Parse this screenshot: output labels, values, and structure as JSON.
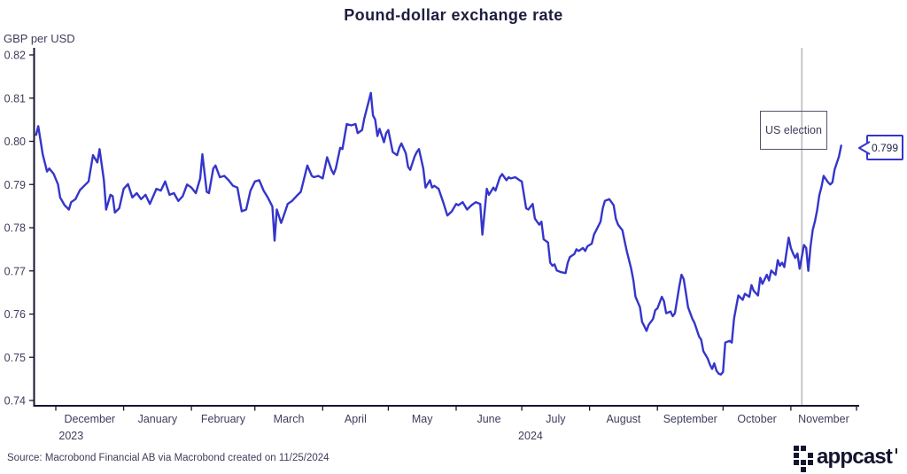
{
  "title": "Pound-dollar exchange rate",
  "y_axis_title": "GBP per USD",
  "source": "Source: Macrobond Financial AB via Macrobond created on 11/25/2024",
  "annotation": {
    "label": "US election",
    "day": 350
  },
  "callout": {
    "value": "0.799"
  },
  "logo": {
    "text": "appcast",
    "grid": [
      [
        1,
        1,
        0
      ],
      [
        1,
        0,
        1
      ],
      [
        1,
        1,
        1
      ],
      [
        0,
        1,
        0
      ]
    ]
  },
  "colors": {
    "line": "#3535cb",
    "axis": "#16162e",
    "tick_text": "#3d3d5c",
    "title_text": "#1d1d3f",
    "election_line": "#a8a8a8",
    "annotation_border": "#54546e",
    "callout_border": "#3535cb"
  },
  "chart_data": {
    "type": "line",
    "title": "Pound-dollar exchange rate",
    "ylabel": "GBP per USD",
    "xlabel": "",
    "grid": false,
    "legend": false,
    "ylim": [
      0.74,
      0.82
    ],
    "y_ticks": [
      0.82,
      0.81,
      0.8,
      0.79,
      0.78,
      0.77,
      0.76,
      0.75,
      0.74
    ],
    "x_unit": "days since 2023-11-22",
    "xlim": [
      0,
      376
    ],
    "months": [
      {
        "label": "December",
        "start": 9,
        "end": 40
      },
      {
        "label": "January",
        "start": 40,
        "end": 71
      },
      {
        "label": "February",
        "start": 71,
        "end": 100
      },
      {
        "label": "March",
        "start": 100,
        "end": 131
      },
      {
        "label": "April",
        "start": 131,
        "end": 161
      },
      {
        "label": "May",
        "start": 161,
        "end": 192
      },
      {
        "label": "June",
        "start": 192,
        "end": 222
      },
      {
        "label": "July",
        "start": 222,
        "end": 253
      },
      {
        "label": "August",
        "start": 253,
        "end": 284
      },
      {
        "label": "September",
        "start": 284,
        "end": 314
      },
      {
        "label": "October",
        "start": 314,
        "end": 345
      },
      {
        "label": "November",
        "start": 345,
        "end": 375
      }
    ],
    "year_labels": [
      {
        "label": "2023",
        "day": 16
      },
      {
        "label": "2024",
        "day": 226
      }
    ],
    "us_election_day": 350,
    "last_value": 0.799,
    "series": [
      {
        "name": "GBP per USD",
        "color": "#3535cb",
        "points": [
          [
            0,
            0.8015
          ],
          [
            1,
            0.8035
          ],
          [
            3,
            0.797
          ],
          [
            5,
            0.793
          ],
          [
            6,
            0.7937
          ],
          [
            8,
            0.7925
          ],
          [
            10,
            0.79
          ],
          [
            11,
            0.787
          ],
          [
            13,
            0.7852
          ],
          [
            15,
            0.7842
          ],
          [
            16,
            0.7859
          ],
          [
            18,
            0.7866
          ],
          [
            20,
            0.7887
          ],
          [
            22,
            0.7897
          ],
          [
            24,
            0.7907
          ],
          [
            26,
            0.7968
          ],
          [
            28,
            0.7951
          ],
          [
            29,
            0.7982
          ],
          [
            31,
            0.791
          ],
          [
            32,
            0.7842
          ],
          [
            34,
            0.7876
          ],
          [
            35,
            0.7873
          ],
          [
            36,
            0.7835
          ],
          [
            38,
            0.7845
          ],
          [
            40,
            0.789
          ],
          [
            42,
            0.7901
          ],
          [
            44,
            0.787
          ],
          [
            46,
            0.788
          ],
          [
            48,
            0.7866
          ],
          [
            50,
            0.7876
          ],
          [
            52,
            0.7855
          ],
          [
            55,
            0.789
          ],
          [
            57,
            0.7886
          ],
          [
            59,
            0.7907
          ],
          [
            61,
            0.7876
          ],
          [
            63,
            0.788
          ],
          [
            65,
            0.7862
          ],
          [
            67,
            0.7873
          ],
          [
            69,
            0.79
          ],
          [
            71,
            0.7893
          ],
          [
            73,
            0.788
          ],
          [
            75,
            0.7914
          ],
          [
            76,
            0.797
          ],
          [
            78,
            0.7883
          ],
          [
            79,
            0.788
          ],
          [
            81,
            0.7937
          ],
          [
            82,
            0.7944
          ],
          [
            84,
            0.7917
          ],
          [
            86,
            0.792
          ],
          [
            88,
            0.791
          ],
          [
            90,
            0.7897
          ],
          [
            92,
            0.7893
          ],
          [
            94,
            0.7838
          ],
          [
            96,
            0.7842
          ],
          [
            98,
            0.7886
          ],
          [
            100,
            0.7907
          ],
          [
            102,
            0.791
          ],
          [
            104,
            0.7886
          ],
          [
            106,
            0.7869
          ],
          [
            108,
            0.7849
          ],
          [
            109,
            0.777
          ],
          [
            110,
            0.7842
          ],
          [
            112,
            0.7811
          ],
          [
            113,
            0.7825
          ],
          [
            115,
            0.7855
          ],
          [
            117,
            0.7862
          ],
          [
            119,
            0.7873
          ],
          [
            121,
            0.7883
          ],
          [
            124,
            0.7944
          ],
          [
            126,
            0.792
          ],
          [
            127,
            0.7917
          ],
          [
            129,
            0.792
          ],
          [
            131,
            0.7914
          ],
          [
            133,
            0.7963
          ],
          [
            135,
            0.7934
          ],
          [
            136,
            0.7924
          ],
          [
            137,
            0.7937
          ],
          [
            139,
            0.7985
          ],
          [
            140,
            0.7982
          ],
          [
            142,
            0.804
          ],
          [
            144,
            0.8037
          ],
          [
            146,
            0.804
          ],
          [
            147,
            0.8019
          ],
          [
            149,
            0.8026
          ],
          [
            150,
            0.8053
          ],
          [
            153,
            0.8112
          ],
          [
            154,
            0.806
          ],
          [
            155,
            0.805
          ],
          [
            156,
            0.8012
          ],
          [
            157,
            0.8029
          ],
          [
            159,
            0.7998
          ],
          [
            160,
            0.8019
          ],
          [
            161,
            0.8026
          ],
          [
            163,
            0.7975
          ],
          [
            165,
            0.7968
          ],
          [
            166,
            0.7985
          ],
          [
            167,
            0.7995
          ],
          [
            169,
            0.7972
          ],
          [
            170,
            0.7941
          ],
          [
            171,
            0.7934
          ],
          [
            173,
            0.7965
          ],
          [
            174,
            0.7975
          ],
          [
            175,
            0.7982
          ],
          [
            177,
            0.7937
          ],
          [
            178,
            0.7893
          ],
          [
            180,
            0.791
          ],
          [
            181,
            0.7893
          ],
          [
            182,
            0.7897
          ],
          [
            184,
            0.789
          ],
          [
            186,
            0.786
          ],
          [
            188,
            0.7828
          ],
          [
            190,
            0.7838
          ],
          [
            192,
            0.7855
          ],
          [
            193,
            0.7852
          ],
          [
            195,
            0.7859
          ],
          [
            197,
            0.7842
          ],
          [
            199,
            0.7852
          ],
          [
            201,
            0.7859
          ],
          [
            203,
            0.7855
          ],
          [
            204,
            0.7784
          ],
          [
            206,
            0.789
          ],
          [
            207,
            0.7876
          ],
          [
            209,
            0.7893
          ],
          [
            210,
            0.7886
          ],
          [
            212,
            0.7917
          ],
          [
            213,
            0.7924
          ],
          [
            215,
            0.791
          ],
          [
            216,
            0.7917
          ],
          [
            217,
            0.7914
          ],
          [
            219,
            0.7917
          ],
          [
            221,
            0.791
          ],
          [
            222,
            0.7907
          ],
          [
            224,
            0.7845
          ],
          [
            225,
            0.7842
          ],
          [
            227,
            0.7855
          ],
          [
            228,
            0.7821
          ],
          [
            230,
            0.7807
          ],
          [
            231,
            0.7814
          ],
          [
            232,
            0.7773
          ],
          [
            234,
            0.7766
          ],
          [
            235,
            0.7719
          ],
          [
            236,
            0.7712
          ],
          [
            237,
            0.7715
          ],
          [
            238,
            0.7701
          ],
          [
            240,
            0.7697
          ],
          [
            242,
            0.7695
          ],
          [
            243,
            0.7719
          ],
          [
            244,
            0.7732
          ],
          [
            246,
            0.7739
          ],
          [
            247,
            0.775
          ],
          [
            248,
            0.7746
          ],
          [
            250,
            0.7753
          ],
          [
            251,
            0.7746
          ],
          [
            252,
            0.7757
          ],
          [
            254,
            0.7763
          ],
          [
            255,
            0.7784
          ],
          [
            256,
            0.7794
          ],
          [
            258,
            0.7814
          ],
          [
            259,
            0.7845
          ],
          [
            260,
            0.7862
          ],
          [
            262,
            0.7866
          ],
          [
            264,
            0.7852
          ],
          [
            265,
            0.7821
          ],
          [
            266,
            0.7807
          ],
          [
            268,
            0.7794
          ],
          [
            269,
            0.7769
          ],
          [
            270,
            0.7746
          ],
          [
            272,
            0.7705
          ],
          [
            273,
            0.7678
          ],
          [
            274,
            0.764
          ],
          [
            276,
            0.7616
          ],
          [
            277,
            0.7582
          ],
          [
            278,
            0.7572
          ],
          [
            279,
            0.7561
          ],
          [
            280,
            0.7575
          ],
          [
            282,
            0.7589
          ],
          [
            283,
            0.7609
          ],
          [
            284,
            0.7613
          ],
          [
            286,
            0.764
          ],
          [
            287,
            0.763
          ],
          [
            288,
            0.7602
          ],
          [
            290,
            0.7606
          ],
          [
            291,
            0.7595
          ],
          [
            292,
            0.7602
          ],
          [
            294,
            0.7664
          ],
          [
            295,
            0.7691
          ],
          [
            296,
            0.7681
          ],
          [
            297,
            0.765
          ],
          [
            298,
            0.7616
          ],
          [
            300,
            0.7589
          ],
          [
            301,
            0.7579
          ],
          [
            303,
            0.7548
          ],
          [
            304,
            0.7541
          ],
          [
            305,
            0.7514
          ],
          [
            307,
            0.7497
          ],
          [
            308,
            0.7483
          ],
          [
            309,
            0.7473
          ],
          [
            310,
            0.7486
          ],
          [
            311,
            0.7469
          ],
          [
            312,
            0.7462
          ],
          [
            313,
            0.746
          ],
          [
            314,
            0.7466
          ],
          [
            315,
            0.7534
          ],
          [
            317,
            0.7538
          ],
          [
            318,
            0.7534
          ],
          [
            319,
            0.7589
          ],
          [
            320,
            0.7616
          ],
          [
            321,
            0.7643
          ],
          [
            323,
            0.7633
          ],
          [
            324,
            0.7647
          ],
          [
            326,
            0.764
          ],
          [
            327,
            0.7667
          ],
          [
            328,
            0.7654
          ],
          [
            330,
            0.7643
          ],
          [
            331,
            0.7684
          ],
          [
            332,
            0.767
          ],
          [
            334,
            0.7691
          ],
          [
            335,
            0.7678
          ],
          [
            336,
            0.7701
          ],
          [
            338,
            0.7691
          ],
          [
            339,
            0.7725
          ],
          [
            340,
            0.7712
          ],
          [
            341,
            0.7719
          ],
          [
            342,
            0.7709
          ],
          [
            344,
            0.7777
          ],
          [
            345,
            0.7753
          ],
          [
            346,
            0.774
          ],
          [
            347,
            0.773
          ],
          [
            348,
            0.774
          ],
          [
            349,
            0.7705
          ],
          [
            351,
            0.776
          ],
          [
            352,
            0.7753
          ],
          [
            353,
            0.77
          ],
          [
            354,
            0.7757
          ],
          [
            355,
            0.7795
          ],
          [
            356,
            0.7815
          ],
          [
            357,
            0.784
          ],
          [
            358,
            0.7875
          ],
          [
            359,
            0.7895
          ],
          [
            360,
            0.792
          ],
          [
            362,
            0.7905
          ],
          [
            363,
            0.79
          ],
          [
            364,
            0.7905
          ],
          [
            365,
            0.7935
          ],
          [
            367,
            0.7965
          ],
          [
            368,
            0.799
          ]
        ]
      }
    ]
  }
}
